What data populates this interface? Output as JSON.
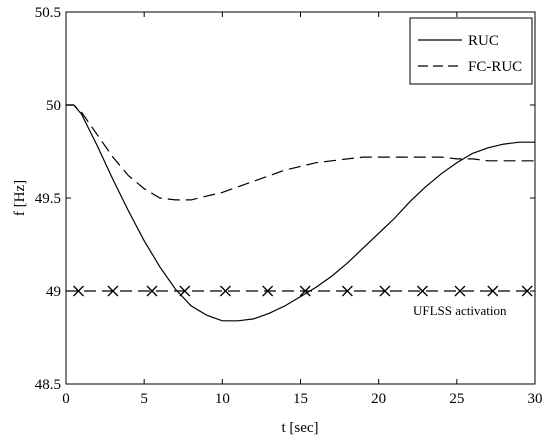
{
  "chart_data": {
    "type": "line",
    "title": "",
    "xlabel": "t [sec]",
    "ylabel": "f [Hz]",
    "xlim": [
      0,
      30
    ],
    "ylim": [
      48.5,
      50.5
    ],
    "xticks": [
      0,
      5,
      10,
      15,
      20,
      25,
      30
    ],
    "yticks": [
      48.5,
      49,
      49.5,
      50,
      50.5
    ],
    "xtick_labels": [
      "0",
      "5",
      "10",
      "15",
      "20",
      "25",
      "30"
    ],
    "ytick_labels": [
      "48.5",
      "49",
      "49.5",
      "50",
      "50.5"
    ],
    "grid": false,
    "legend_position": "top-right",
    "series": [
      {
        "name": "RUC",
        "style": "solid",
        "x": [
          0,
          0.5,
          1,
          2,
          3,
          4,
          5,
          6,
          7,
          8,
          9,
          10,
          11,
          12,
          13,
          14,
          15,
          16,
          17,
          18,
          19,
          20,
          21,
          22,
          23,
          24,
          25,
          26,
          27,
          28,
          29,
          30
        ],
        "y": [
          50,
          50.0,
          49.95,
          49.78,
          49.6,
          49.43,
          49.27,
          49.13,
          49.01,
          48.92,
          48.87,
          48.84,
          48.84,
          48.85,
          48.88,
          48.92,
          48.97,
          49.02,
          49.08,
          49.15,
          49.23,
          49.31,
          49.39,
          49.48,
          49.56,
          49.63,
          49.69,
          49.74,
          49.77,
          49.79,
          49.8,
          49.8
        ]
      },
      {
        "name": "FC-RUC",
        "style": "dashed",
        "x": [
          0,
          0.5,
          1,
          2,
          3,
          4,
          5,
          6,
          7,
          8,
          9,
          10,
          11,
          12,
          13,
          14,
          15,
          16,
          17,
          18,
          19,
          20,
          21,
          22,
          23,
          24,
          25,
          26,
          27,
          28,
          29,
          30
        ],
        "y": [
          50,
          50.0,
          49.96,
          49.84,
          49.72,
          49.62,
          49.55,
          49.5,
          49.49,
          49.49,
          49.51,
          49.53,
          49.56,
          49.59,
          49.62,
          49.65,
          49.67,
          49.69,
          49.7,
          49.71,
          49.72,
          49.72,
          49.72,
          49.72,
          49.72,
          49.72,
          49.71,
          49.71,
          49.7,
          49.7,
          49.7,
          49.7
        ]
      },
      {
        "name": "UFLSS activation",
        "style": "dash-x",
        "y": 49,
        "marker_x": [
          0.8,
          3.0,
          5.5,
          7.6,
          10.2,
          12.9,
          15.3,
          18.0,
          20.4,
          22.8,
          25.2,
          27.3,
          29.5
        ]
      }
    ],
    "annotation": "UFLSS activation"
  }
}
